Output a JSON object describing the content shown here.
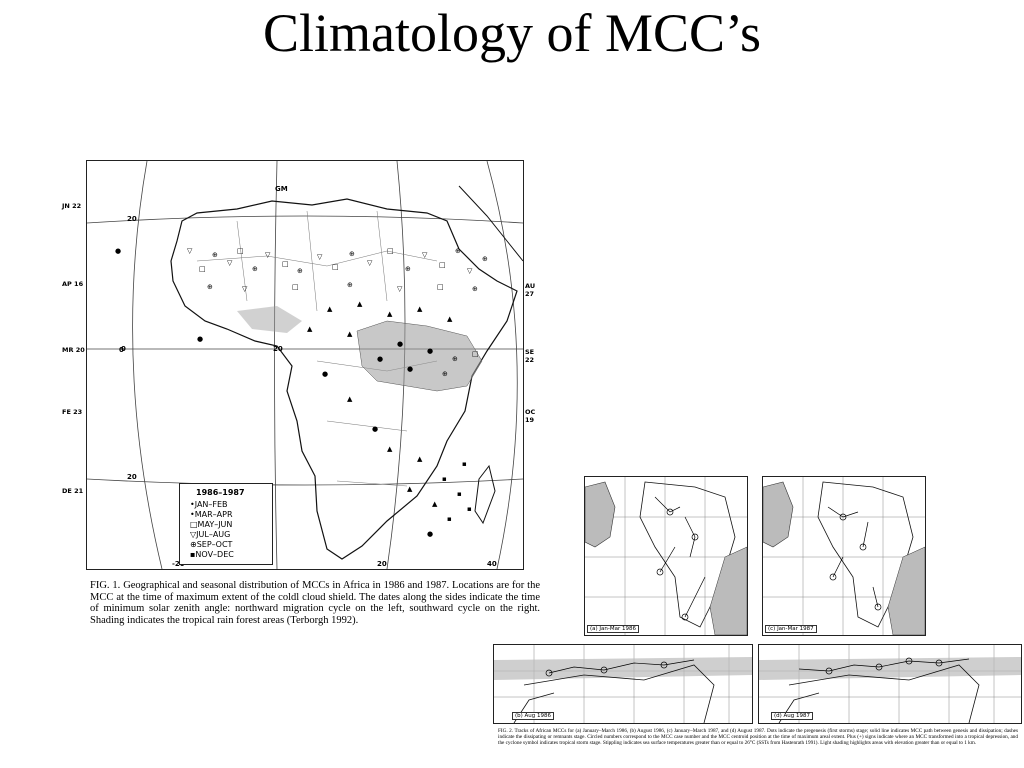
{
  "slide": {
    "title": "Climatology of MCC’s"
  },
  "figure1": {
    "left_dates": [
      "JN 22",
      "AP 16",
      "MR 20",
      "FE 23",
      "DE 21"
    ],
    "right_dates": [
      "AU 27",
      "SE 22",
      "OC 19"
    ],
    "lat_labels": [
      "20",
      "0",
      "20"
    ],
    "lon_labels": [
      "GM",
      "0",
      "20",
      "-20",
      "20",
      "40"
    ],
    "legend": {
      "title": "1986–1987",
      "items": [
        "•JAN–FEB",
        "•MAR–APR",
        "□MAY–JUN",
        "▽JUL–AUG",
        "⊕SEP–OCT",
        "▪NOV–DEC"
      ]
    },
    "caption": "FIG. 1. Geographical and seasonal distribution of MCCs in Africa in 1986 and 1987. Locations are for the MCC at the time of maximum extent of the coldl cloud shield. The dates along the sides indicate the time of minimum solar zenith angle: northward migration cycle on the left, southward cycle on the right. Shading indicates the tropical rain forest areas (Terborgh 1992)."
  },
  "figure2": {
    "panels": [
      "(a) Jan-Mar 1986",
      "(c) Jan-Mar 1987",
      "(b) Aug 1986",
      "(d) Aug 1987"
    ],
    "caption": "FIG. 2. Tracks of African MCCs for (a) January–March 1986, (b) August 1986, (c) January–March 1987, and (d) August 1987. Dots indicate the pregenesis (first storms) stage; solid line indicates MCC path between genesis and dissipation; dashes indicate the dissipating or remnants stage. Circled numbers correspond to the MCC case number and the MCC centroid position at the time of maximum areal extent. Plus (+) signs indicate where an MCC transformed into a tropical depression, and the cyclone symbol indicates tropical storm stage. Stippling indicates sea surface temperatures greater than or equal to 26°C (SSTs from Hastenrath 1991). Light shading highlights areas with elevation greater than or equal to 1 km."
  }
}
